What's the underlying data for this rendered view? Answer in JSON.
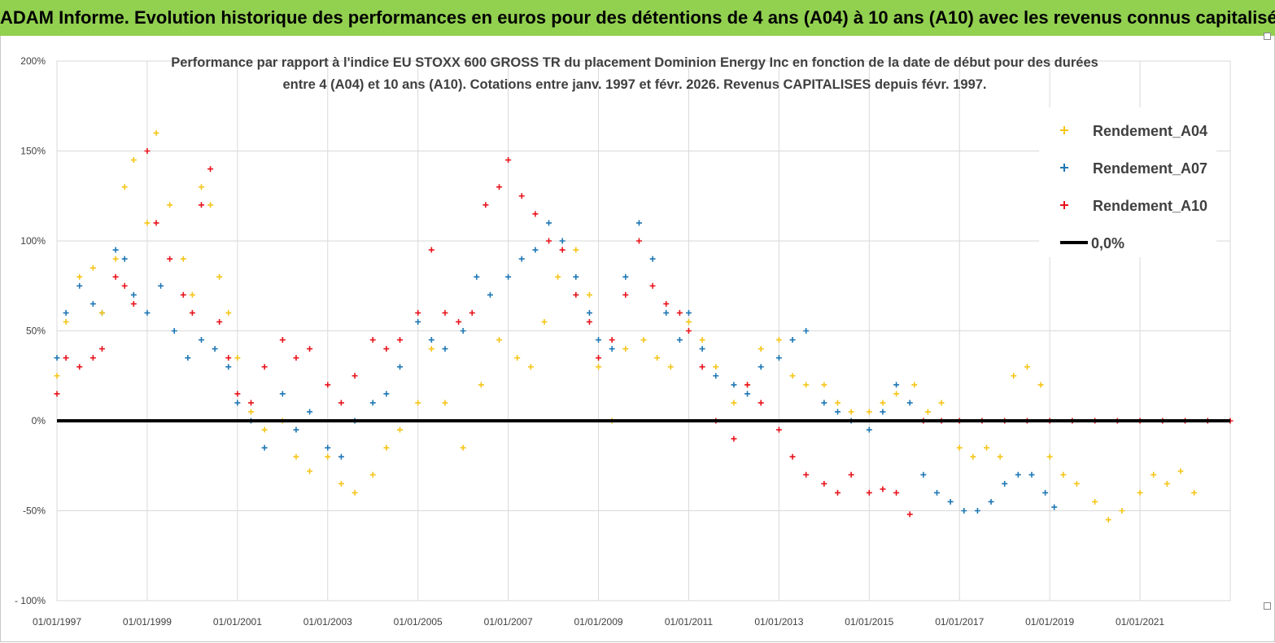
{
  "banner": {
    "text": "ADAM Informe. Evolution historique des performances en euros pour des détentions de 4 ans (A04) à 10 ans (A10) avec les revenus connus capitalisés"
  },
  "chart_data": {
    "type": "scatter",
    "title_line1": "Performance par rapport à l'indice EU STOXX 600 GROSS TR  du placement Dominion Energy Inc en fonction de la date de début pour des durées",
    "title_line2": "entre 4 (A04) et 10 ans (A10). Cotations entre janv. 1997 et févr. 2026. Revenus CAPITALISES depuis févr. 1997.",
    "xlabel": "",
    "ylabel": "",
    "xlim": [
      1997.0,
      2023.0
    ],
    "ylim": [
      -100,
      200
    ],
    "x_tick_labels": [
      "01/01/1997",
      "01/01/1999",
      "01/01/2001",
      "01/01/2003",
      "01/01/2005",
      "01/01/2007",
      "01/01/2009",
      "01/01/2011",
      "01/01/2013",
      "01/01/2015",
      "01/01/2017",
      "01/01/2019",
      "01/01/2021"
    ],
    "x_tick_years": [
      1997,
      1999,
      2001,
      2003,
      2005,
      2007,
      2009,
      2011,
      2013,
      2015,
      2017,
      2019,
      2021
    ],
    "y_ticks": [
      -100,
      -50,
      0,
      50,
      100,
      150,
      200
    ],
    "y_tick_labels": [
      "- 100%",
      "-50%",
      "0%",
      "50%",
      "100%",
      "150%",
      "200%"
    ],
    "grid": true,
    "legend_position": "top-right",
    "series": [
      {
        "name": "Rendement_A04",
        "color": "#f5c518",
        "x": [
          1997.0,
          1997.2,
          1997.5,
          1997.8,
          1998.0,
          1998.3,
          1998.5,
          1998.7,
          1999.0,
          1999.2,
          1999.5,
          1999.8,
          2000.0,
          2000.2,
          2000.4,
          2000.6,
          2000.8,
          2001.0,
          2001.3,
          2001.6,
          2002.0,
          2002.3,
          2002.6,
          2003.0,
          2003.3,
          2003.6,
          2004.0,
          2004.3,
          2004.6,
          2005.0,
          2005.3,
          2005.6,
          2006.0,
          2006.4,
          2006.8,
          2007.2,
          2007.5,
          2007.8,
          2008.1,
          2008.5,
          2008.8,
          2009.0,
          2009.3,
          2009.6,
          2010.0,
          2010.3,
          2010.6,
          2011.0,
          2011.3,
          2011.6,
          2012.0,
          2012.3,
          2012.6,
          2013.0,
          2013.3,
          2013.6,
          2014.0,
          2014.3,
          2014.6,
          2015.0,
          2015.3,
          2015.6,
          2016.0,
          2016.3,
          2016.6,
          2017.0,
          2017.3,
          2017.6,
          2017.9,
          2018.2,
          2018.5,
          2018.8,
          2019.0,
          2019.3,
          2019.6,
          2020.0,
          2020.3,
          2020.6,
          2021.0,
          2021.3,
          2021.6,
          2021.9,
          2022.2
        ],
        "y": [
          25,
          55,
          80,
          85,
          60,
          90,
          130,
          145,
          110,
          160,
          120,
          90,
          70,
          130,
          120,
          80,
          60,
          35,
          5,
          -5,
          0,
          -20,
          -28,
          -20,
          -35,
          -40,
          -30,
          -15,
          -5,
          10,
          40,
          10,
          -15,
          20,
          45,
          35,
          30,
          55,
          80,
          95,
          70,
          30,
          0,
          40,
          45,
          35,
          30,
          55,
          45,
          30,
          10,
          20,
          40,
          45,
          25,
          20,
          20,
          10,
          5,
          5,
          10,
          15,
          20,
          5,
          10,
          -15,
          -20,
          -15,
          -20,
          25,
          30,
          20,
          -20,
          -30,
          -35,
          -45,
          -55,
          -50,
          -40,
          -30,
          -35,
          -28,
          -40
        ]
      },
      {
        "name": "Rendement_A07",
        "color": "#1f77b4",
        "x": [
          1997.0,
          1997.2,
          1997.5,
          1997.8,
          1998.0,
          1998.3,
          1998.5,
          1998.7,
          1999.0,
          1999.3,
          1999.6,
          1999.9,
          2000.2,
          2000.5,
          2000.8,
          2001.0,
          2001.3,
          2001.6,
          2002.0,
          2002.3,
          2002.6,
          2003.0,
          2003.3,
          2003.6,
          2004.0,
          2004.3,
          2004.6,
          2005.0,
          2005.3,
          2005.6,
          2006.0,
          2006.3,
          2006.6,
          2007.0,
          2007.3,
          2007.6,
          2007.9,
          2008.2,
          2008.5,
          2008.8,
          2009.0,
          2009.3,
          2009.6,
          2009.9,
          2010.2,
          2010.5,
          2010.8,
          2011.0,
          2011.3,
          2011.6,
          2012.0,
          2012.3,
          2012.6,
          2013.0,
          2013.3,
          2013.6,
          2014.0,
          2014.3,
          2014.6,
          2015.0,
          2015.3,
          2015.6,
          2015.9,
          2016.2,
          2016.5,
          2016.8,
          2017.1,
          2017.4,
          2017.7,
          2018.0,
          2018.3,
          2018.6,
          2018.9,
          2019.1
        ],
        "y": [
          35,
          60,
          75,
          65,
          60,
          95,
          90,
          70,
          60,
          75,
          50,
          35,
          45,
          40,
          30,
          10,
          0,
          -15,
          15,
          -5,
          5,
          -15,
          -20,
          0,
          10,
          15,
          30,
          55,
          45,
          40,
          50,
          80,
          70,
          80,
          90,
          95,
          110,
          100,
          80,
          60,
          45,
          40,
          80,
          110,
          90,
          60,
          45,
          60,
          40,
          25,
          20,
          15,
          30,
          35,
          45,
          50,
          10,
          5,
          0,
          -5,
          5,
          20,
          10,
          -30,
          -40,
          -45,
          -50,
          -50,
          -45,
          -35,
          -30,
          -30,
          -40,
          -48
        ]
      },
      {
        "name": "Rendement_A10",
        "color": "#e8141c",
        "x": [
          1997.0,
          1997.2,
          1997.5,
          1997.8,
          1998.0,
          1998.3,
          1998.5,
          1998.7,
          1999.0,
          1999.2,
          1999.5,
          1999.8,
          2000.0,
          2000.2,
          2000.4,
          2000.6,
          2000.8,
          2001.0,
          2001.3,
          2001.6,
          2002.0,
          2002.3,
          2002.6,
          2003.0,
          2003.3,
          2003.6,
          2004.0,
          2004.3,
          2004.6,
          2005.0,
          2005.3,
          2005.6,
          2005.9,
          2006.2,
          2006.5,
          2006.8,
          2007.0,
          2007.3,
          2007.6,
          2007.9,
          2008.2,
          2008.5,
          2008.8,
          2009.0,
          2009.3,
          2009.6,
          2009.9,
          2010.2,
          2010.5,
          2010.8,
          2011.0,
          2011.3,
          2011.6,
          2012.0,
          2012.3,
          2012.6,
          2013.0,
          2013.3,
          2013.6,
          2014.0,
          2014.3,
          2014.6,
          2015.0,
          2015.3,
          2015.6,
          2015.9,
          2016.2,
          2016.6,
          2017.0,
          2017.5,
          2018.0,
          2018.5,
          2019.0,
          2019.5,
          2020.0,
          2020.5,
          2021.0,
          2021.5,
          2022.0,
          2022.5,
          2023.0
        ],
        "y": [
          15,
          35,
          30,
          35,
          40,
          80,
          75,
          65,
          150,
          110,
          90,
          70,
          60,
          120,
          140,
          55,
          35,
          15,
          10,
          30,
          45,
          35,
          40,
          20,
          10,
          25,
          45,
          40,
          45,
          60,
          95,
          60,
          55,
          60,
          120,
          130,
          145,
          125,
          115,
          100,
          95,
          70,
          55,
          35,
          45,
          70,
          100,
          75,
          65,
          60,
          50,
          30,
          0,
          -10,
          20,
          10,
          -5,
          -20,
          -30,
          -35,
          -40,
          -30,
          -40,
          -38,
          -40,
          -52,
          0,
          0,
          0,
          0,
          0,
          0,
          0,
          0,
          0,
          0,
          0,
          0,
          0,
          0,
          0
        ]
      },
      {
        "name": "0,0%",
        "color": "#000000",
        "x": [
          1997.0,
          2023.0
        ],
        "y": [
          0,
          0
        ]
      }
    ]
  }
}
